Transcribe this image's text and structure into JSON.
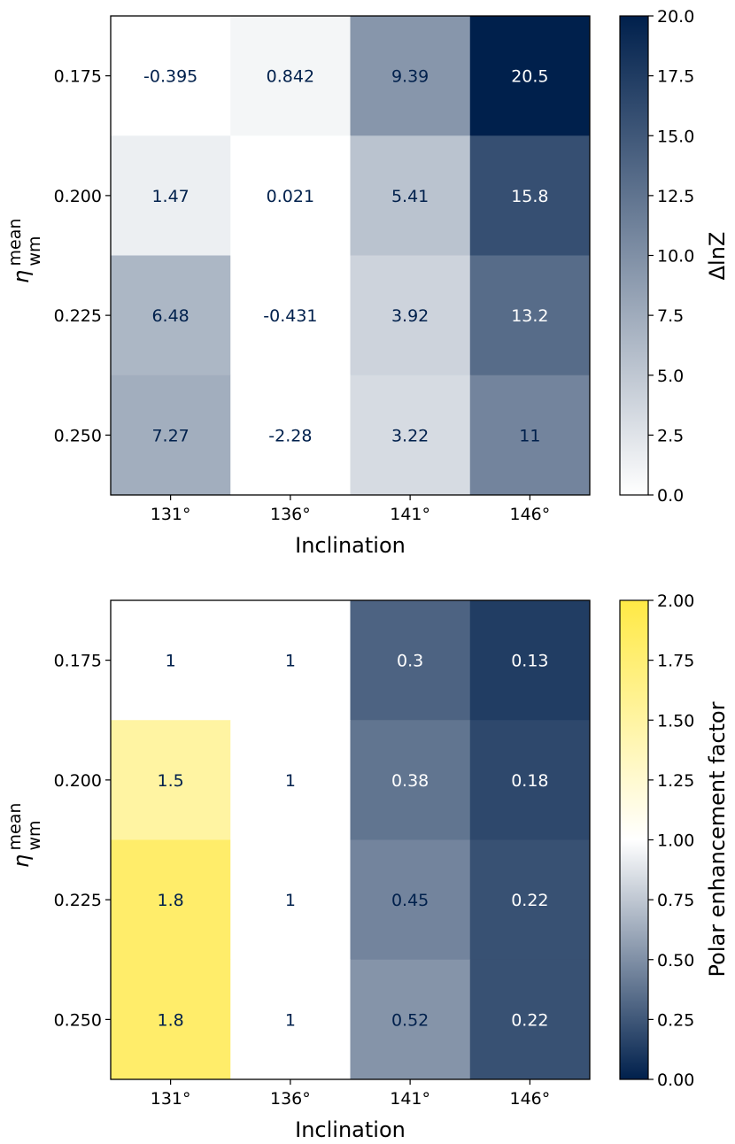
{
  "chart_data": [
    {
      "type": "heatmap",
      "title": "",
      "xlabel": "Inclination",
      "ylabel": "η",
      "ylabel_sup": "mean",
      "ylabel_sub": "wm",
      "x_ticks": [
        "131°",
        "136°",
        "141°",
        "146°"
      ],
      "y_ticks": [
        "0.175",
        "0.200",
        "0.225",
        "0.250"
      ],
      "values": [
        [
          -0.395,
          0.842,
          9.39,
          20.5
        ],
        [
          1.47,
          0.021,
          5.41,
          15.8
        ],
        [
          6.48,
          -0.431,
          3.92,
          13.2
        ],
        [
          7.27,
          -2.28,
          3.22,
          11
        ]
      ],
      "cell_labels": [
        [
          "-0.395",
          "0.842",
          "9.39",
          "20.5"
        ],
        [
          "1.47",
          "0.021",
          "5.41",
          "15.8"
        ],
        [
          "6.48",
          "-0.431",
          "3.92",
          "13.2"
        ],
        [
          "7.27",
          "-2.28",
          "3.22",
          "11"
        ]
      ],
      "colorbar": {
        "label": "ΔlnZ",
        "vmin": 0.0,
        "vmax": 20.0,
        "ticks": [
          "0.0",
          "2.5",
          "5.0",
          "7.5",
          "10.0",
          "12.5",
          "15.0",
          "17.5",
          "20.0"
        ],
        "colormap": [
          "#ffffff",
          "#00204c"
        ]
      }
    },
    {
      "type": "heatmap",
      "title": "",
      "xlabel": "Inclination",
      "ylabel": "η",
      "ylabel_sup": "mean",
      "ylabel_sub": "wm",
      "x_ticks": [
        "131°",
        "136°",
        "141°",
        "146°"
      ],
      "y_ticks": [
        "0.175",
        "0.200",
        "0.225",
        "0.250"
      ],
      "values": [
        [
          1,
          1,
          0.3,
          0.13
        ],
        [
          1.5,
          1,
          0.38,
          0.18
        ],
        [
          1.8,
          1,
          0.45,
          0.22
        ],
        [
          1.8,
          1,
          0.52,
          0.22
        ]
      ],
      "cell_labels": [
        [
          "1",
          "1",
          "0.3",
          "0.13"
        ],
        [
          "1.5",
          "1",
          "0.38",
          "0.18"
        ],
        [
          "1.8",
          "1",
          "0.45",
          "0.22"
        ],
        [
          "1.8",
          "1",
          "0.52",
          "0.22"
        ]
      ],
      "colorbar": {
        "label": "Polar enhancement factor",
        "vmin": 0.0,
        "vmax": 2.0,
        "ticks": [
          "0.00",
          "0.25",
          "0.50",
          "0.75",
          "1.00",
          "1.25",
          "1.50",
          "1.75",
          "2.00"
        ],
        "colormap": [
          "#00204c",
          "#ffffff",
          "#ffe945"
        ]
      }
    }
  ]
}
